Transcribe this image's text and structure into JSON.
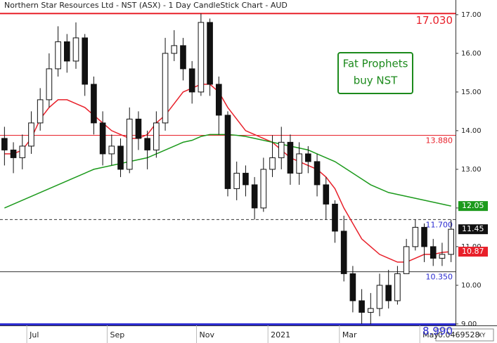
{
  "chart_data": {
    "type": "candlestick",
    "title": "Northern Star Resources Ltd - NST (ASX) - 1 Day CandleStick Chart - AUD",
    "categories": [
      null,
      null,
      null,
      "Jul",
      null,
      null,
      null,
      null,
      null,
      null,
      null,
      null,
      "Sep",
      null,
      null,
      null,
      null,
      null,
      null,
      null,
      null,
      null,
      "Nov",
      null,
      null,
      null,
      null,
      null,
      null,
      null,
      "2021",
      null,
      null,
      null,
      null,
      null,
      null,
      null,
      "Mar",
      null,
      null,
      null,
      null,
      null,
      null,
      null,
      null,
      "May",
      null,
      null,
      null
    ],
    "open": [
      13.8,
      13.5,
      13.3,
      13.6,
      14.2,
      14.8,
      15.6,
      16.3,
      15.8,
      16.4,
      15.2,
      14.2,
      13.4,
      13.6,
      13.0,
      14.3,
      13.8,
      13.5,
      14.2,
      16.0,
      16.2,
      15.6,
      15.0,
      16.8,
      15.2,
      14.4,
      12.5,
      12.9,
      12.6,
      12.0,
      13.0,
      13.3,
      13.7,
      12.9,
      13.4,
      13.2,
      12.6,
      12.1,
      11.4,
      10.3,
      9.6,
      9.3,
      9.4,
      10.0,
      9.6,
      10.3,
      11.0,
      11.5,
      11.0,
      10.7,
      10.8
    ],
    "high": [
      14.1,
      13.7,
      13.9,
      14.5,
      15.1,
      16.0,
      16.7,
      16.5,
      16.8,
      16.5,
      15.4,
      14.5,
      13.9,
      13.8,
      14.6,
      14.5,
      14.0,
      14.5,
      16.4,
      16.6,
      16.4,
      15.8,
      17.03,
      16.9,
      15.4,
      14.5,
      13.2,
      13.1,
      12.8,
      13.3,
      13.88,
      14.1,
      13.9,
      13.7,
      13.6,
      13.4,
      12.8,
      12.2,
      11.8,
      10.5,
      9.9,
      9.8,
      10.3,
      10.4,
      10.5,
      11.2,
      11.7,
      11.6,
      11.2,
      11.1,
      11.7
    ],
    "low": [
      13.1,
      12.9,
      13.0,
      13.4,
      14.0,
      14.6,
      15.4,
      15.5,
      15.6,
      14.9,
      13.9,
      13.1,
      13.1,
      12.8,
      12.9,
      13.5,
      13.0,
      13.3,
      14.0,
      15.8,
      15.3,
      14.7,
      14.9,
      14.9,
      13.9,
      12.3,
      12.2,
      12.3,
      11.7,
      11.9,
      12.8,
      13.0,
      12.6,
      12.6,
      12.9,
      12.3,
      11.7,
      11.1,
      10.1,
      9.3,
      9.0,
      8.99,
      9.2,
      9.4,
      9.5,
      10.35,
      10.9,
      10.6,
      10.5,
      10.5,
      10.6
    ],
    "close": [
      13.5,
      13.3,
      13.6,
      14.2,
      14.8,
      15.6,
      16.3,
      15.8,
      16.4,
      15.2,
      14.2,
      13.4,
      13.6,
      13.0,
      14.3,
      13.8,
      13.5,
      14.2,
      16.0,
      16.2,
      15.6,
      15.0,
      16.8,
      15.2,
      14.4,
      12.5,
      12.9,
      12.6,
      12.0,
      13.0,
      13.3,
      13.7,
      12.9,
      13.4,
      13.2,
      12.6,
      12.1,
      11.4,
      10.3,
      9.6,
      9.3,
      9.4,
      10.0,
      9.6,
      10.3,
      11.0,
      11.5,
      11.0,
      10.7,
      10.8,
      11.45
    ],
    "candle_color": "#111111",
    "series": [
      {
        "color": "#e8202a",
        "values": [
          13.4,
          13.4,
          13.5,
          13.8,
          14.3,
          14.6,
          14.8,
          14.8,
          14.7,
          14.6,
          14.4,
          14.2,
          14.0,
          13.9,
          13.8,
          13.8,
          13.9,
          14.2,
          14.4,
          14.7,
          15.0,
          15.1,
          15.2,
          15.2,
          15.0,
          14.6,
          14.3,
          14.0,
          13.9,
          13.8,
          13.7,
          13.5,
          13.3,
          13.2,
          13.1,
          13.0,
          12.8,
          12.5,
          12.0,
          11.6,
          11.2,
          11.0,
          10.8,
          10.7,
          10.6,
          10.6,
          10.7,
          10.8,
          10.8,
          10.85,
          10.87
        ]
      },
      {
        "color": "#1c9a1c",
        "values": [
          12.0,
          12.1,
          12.2,
          12.3,
          12.4,
          12.5,
          12.6,
          12.7,
          12.8,
          12.9,
          13.0,
          13.05,
          13.1,
          13.15,
          13.2,
          13.25,
          13.3,
          13.4,
          13.5,
          13.6,
          13.7,
          13.75,
          13.85,
          13.9,
          13.9,
          13.9,
          13.88,
          13.85,
          13.8,
          13.75,
          13.7,
          13.65,
          13.6,
          13.55,
          13.5,
          13.4,
          13.3,
          13.2,
          13.05,
          12.9,
          12.75,
          12.6,
          12.5,
          12.4,
          12.35,
          12.3,
          12.25,
          12.2,
          12.15,
          12.1,
          12.05
        ]
      }
    ],
    "levels": [
      {
        "value": 17.03,
        "label": "17.030",
        "color": "#e8202a",
        "style": "solid"
      },
      {
        "value": 13.88,
        "label": "13.880",
        "color": "#e8202a",
        "style": "solid"
      },
      {
        "value": 11.7,
        "label": "11.700",
        "color": "#2b2bd0",
        "style": "dashed"
      },
      {
        "value": 10.35,
        "label": "10.350",
        "color": "#2b2bd0",
        "style": "solid"
      },
      {
        "value": 8.99,
        "label": "8.990",
        "color": "#2b2bd0",
        "style": "thick"
      }
    ],
    "ylim": [
      8.98,
      17.38
    ],
    "yticks": [
      {
        "value": 9,
        "label": "9.00"
      },
      {
        "value": 10,
        "label": "10.00"
      },
      {
        "value": 11,
        "label": "11.00"
      },
      {
        "value": 12,
        "label": "12.00"
      },
      {
        "value": 13,
        "label": "13.00"
      },
      {
        "value": 14,
        "label": "14.00"
      },
      {
        "value": 15,
        "label": "15.00"
      },
      {
        "value": 16,
        "label": "16.00"
      },
      {
        "value": 17,
        "label": "17.00"
      }
    ],
    "annotation": [
      "Fat Prophets",
      "buy NST"
    ],
    "corner_value": "0.0469528",
    "corner_icon": "XY"
  }
}
